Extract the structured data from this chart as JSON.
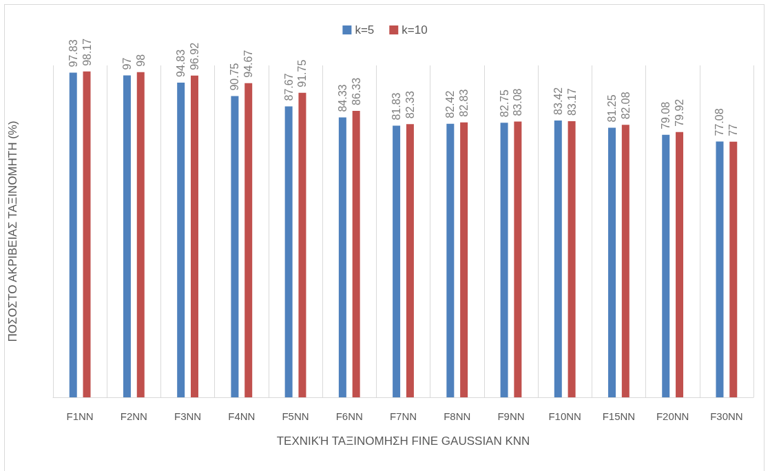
{
  "chart_data": {
    "type": "bar",
    "xlabel": "ΤΕΧΝΙΚΉ ΤΑΞΙΝΟΜΗΣΗ FINE GAUSSIAN KNN",
    "ylabel": "ΠΟΣΟΣΤΟ ΑΚΡΙΒΕΙΑΣ ΤΑΞΙΝΟΜΗΤΗ (%)",
    "categories": [
      "F1NN",
      "F2NN",
      "F3NN",
      "F4NN",
      "F5NN",
      "F6NN",
      "F7NN",
      "F8NN",
      "F9NN",
      "F10NN",
      "F15NN",
      "F20NN",
      "F30NN"
    ],
    "series": [
      {
        "name": "k=5",
        "color": "#4f81bd",
        "values": [
          97.83,
          97,
          94.83,
          90.75,
          87.67,
          84.33,
          81.83,
          82.42,
          82.75,
          83.42,
          81.25,
          79.08,
          77.08
        ]
      },
      {
        "name": "k=10",
        "color": "#c0504d",
        "values": [
          98.17,
          98,
          96.92,
          94.67,
          91.75,
          86.33,
          82.33,
          82.83,
          83.08,
          83.17,
          82.08,
          79.92,
          77
        ]
      }
    ],
    "data_labels": true,
    "grid": "x",
    "legend": "top",
    "tick_labels": "x"
  }
}
